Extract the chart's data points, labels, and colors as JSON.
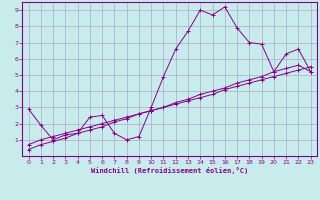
{
  "background_color": "#c8ecec",
  "grid_color": "#aaaacc",
  "line_color": "#880088",
  "xlabel": "Windchill (Refroidissement éolien,°C)",
  "xlim": [
    -0.5,
    23.5
  ],
  "ylim": [
    0,
    9.5
  ],
  "xticks": [
    0,
    1,
    2,
    3,
    4,
    5,
    6,
    7,
    8,
    9,
    10,
    11,
    12,
    13,
    14,
    15,
    16,
    17,
    18,
    19,
    20,
    21,
    22,
    23
  ],
  "yticks": [
    1,
    2,
    3,
    4,
    5,
    6,
    7,
    8,
    9
  ],
  "series1_x": [
    0,
    1,
    2,
    3,
    4,
    5,
    6,
    7,
    8,
    9,
    10,
    11,
    12,
    13,
    14,
    15,
    16,
    17,
    18,
    19,
    20,
    21,
    22,
    23
  ],
  "series1_y": [
    2.9,
    1.9,
    1.0,
    1.3,
    1.4,
    2.4,
    2.5,
    1.4,
    1.0,
    1.2,
    3.0,
    4.9,
    6.6,
    7.7,
    9.0,
    8.7,
    9.2,
    7.9,
    7.0,
    6.9,
    5.2,
    6.3,
    6.6,
    5.2
  ],
  "series2_x": [
    0,
    1,
    2,
    3,
    4,
    5,
    6,
    7,
    8,
    9,
    10,
    11,
    12,
    13,
    14,
    15,
    16,
    17,
    18,
    19,
    20,
    21,
    22,
    23
  ],
  "series2_y": [
    0.7,
    1.0,
    1.2,
    1.4,
    1.6,
    1.8,
    2.0,
    2.2,
    2.4,
    2.6,
    2.8,
    3.0,
    3.2,
    3.4,
    3.6,
    3.8,
    4.1,
    4.3,
    4.5,
    4.7,
    4.9,
    5.1,
    5.3,
    5.5
  ],
  "series3_x": [
    0,
    1,
    2,
    3,
    4,
    5,
    6,
    7,
    8,
    9,
    10,
    11,
    12,
    13,
    14,
    15,
    16,
    17,
    18,
    19,
    20,
    21,
    22,
    23
  ],
  "series3_y": [
    0.4,
    0.7,
    0.9,
    1.1,
    1.4,
    1.6,
    1.8,
    2.1,
    2.3,
    2.6,
    2.8,
    3.0,
    3.3,
    3.5,
    3.8,
    4.0,
    4.2,
    4.5,
    4.7,
    4.9,
    5.2,
    5.4,
    5.6,
    5.2
  ]
}
